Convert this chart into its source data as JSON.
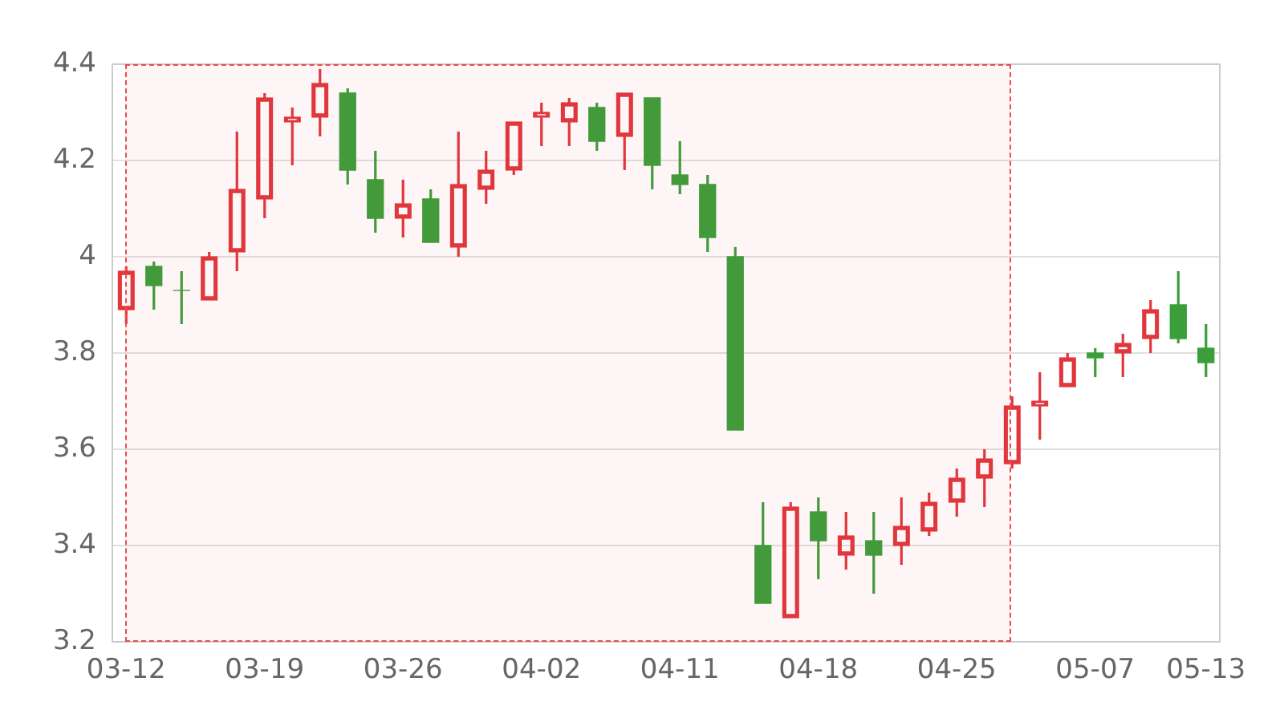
{
  "chart_data": {
    "type": "candlestick",
    "categories": [
      "03-12",
      null,
      null,
      null,
      null,
      "03-19",
      null,
      null,
      null,
      null,
      "03-26",
      null,
      null,
      null,
      null,
      "04-02",
      null,
      null,
      null,
      null,
      "04-11",
      null,
      null,
      null,
      null,
      "04-18",
      null,
      null,
      null,
      null,
      "04-25",
      null,
      null,
      null,
      null,
      "05-07",
      null,
      null,
      null,
      "05-13"
    ],
    "ohlc": [
      [
        3.89,
        3.98,
        3.86,
        3.97
      ],
      [
        3.98,
        3.99,
        3.89,
        3.94
      ],
      [
        3.93,
        3.97,
        3.86,
        3.93
      ],
      [
        3.91,
        4.01,
        3.91,
        4.0
      ],
      [
        4.01,
        4.26,
        3.97,
        4.14
      ],
      [
        4.12,
        4.34,
        4.08,
        4.33
      ],
      [
        4.28,
        4.31,
        4.19,
        4.29
      ],
      [
        4.29,
        4.39,
        4.25,
        4.36
      ],
      [
        4.34,
        4.35,
        4.15,
        4.18
      ],
      [
        4.16,
        4.22,
        4.05,
        4.08
      ],
      [
        4.08,
        4.16,
        4.04,
        4.11
      ],
      [
        4.12,
        4.14,
        4.03,
        4.03
      ],
      [
        4.02,
        4.26,
        4.0,
        4.15
      ],
      [
        4.14,
        4.22,
        4.11,
        4.18
      ],
      [
        4.18,
        4.28,
        4.17,
        4.28
      ],
      [
        4.29,
        4.32,
        4.23,
        4.3
      ],
      [
        4.28,
        4.33,
        4.23,
        4.32
      ],
      [
        4.31,
        4.32,
        4.22,
        4.24
      ],
      [
        4.25,
        4.34,
        4.18,
        4.34
      ],
      [
        4.33,
        4.33,
        4.14,
        4.19
      ],
      [
        4.17,
        4.24,
        4.13,
        4.15
      ],
      [
        4.15,
        4.17,
        4.01,
        4.04
      ],
      [
        4.0,
        4.02,
        3.64,
        3.64
      ],
      [
        3.4,
        3.49,
        3.28,
        3.28
      ],
      [
        3.25,
        3.49,
        3.25,
        3.48
      ],
      [
        3.47,
        3.5,
        3.33,
        3.41
      ],
      [
        3.38,
        3.47,
        3.35,
        3.42
      ],
      [
        3.41,
        3.47,
        3.3,
        3.38
      ],
      [
        3.4,
        3.5,
        3.36,
        3.44
      ],
      [
        3.43,
        3.51,
        3.42,
        3.49
      ],
      [
        3.49,
        3.56,
        3.46,
        3.54
      ],
      [
        3.54,
        3.6,
        3.48,
        3.58
      ],
      [
        3.57,
        3.71,
        3.56,
        3.69
      ],
      [
        3.69,
        3.76,
        3.62,
        3.7
      ],
      [
        3.73,
        3.8,
        3.73,
        3.79
      ],
      [
        3.8,
        3.81,
        3.75,
        3.79
      ],
      [
        3.8,
        3.84,
        3.75,
        3.82
      ],
      [
        3.83,
        3.91,
        3.8,
        3.89
      ],
      [
        3.9,
        3.97,
        3.82,
        3.83
      ],
      [
        3.81,
        3.86,
        3.75,
        3.78
      ]
    ],
    "colors": [
      "#e0363c",
      "#3a9f3a",
      "#3a9f3a",
      "#e0363c",
      "#e0363c",
      "#e0363c",
      "#e0363c",
      "#e0363c",
      "#3a9f3a",
      "#3a9f3a",
      "#e0363c",
      "#3a9f3a",
      "#e0363c",
      "#e0363c",
      "#e0363c",
      "#e0363c",
      "#e0363c",
      "#3a9f3a",
      "#e0363c",
      "#3a9f3a",
      "#3a9f3a",
      "#3a9f3a",
      "#3a9f3a",
      "#3a9f3a",
      "#e0363c",
      "#3a9f3a",
      "#e0363c",
      "#3a9f3a",
      "#e0363c",
      "#e0363c",
      "#e0363c",
      "#e0363c",
      "#e0363c",
      "#e0363c",
      "#e0363c",
      "#3a9f3a",
      "#e0363c",
      "#e0363c",
      "#3a9f3a",
      "#3a9f3a"
    ],
    "ylim": [
      3.2,
      4.4
    ],
    "yticks": [
      3.2,
      3.4,
      3.6,
      3.8,
      4,
      4.2,
      4.4
    ],
    "grid": "y"
  }
}
